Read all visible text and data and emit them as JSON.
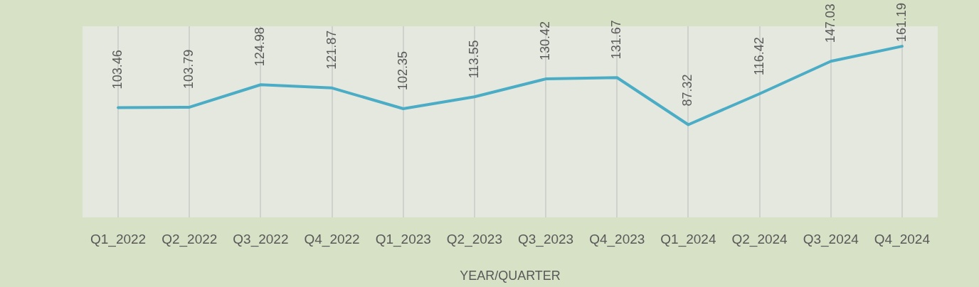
{
  "chart_data": {
    "type": "line",
    "xlabel": "YEAR/QUARTER",
    "categories": [
      "Q1_2022",
      "Q2_2022",
      "Q3_2022",
      "Q4_2022",
      "Q1_2023",
      "Q2_2023",
      "Q3_2023",
      "Q4_2023",
      "Q1_2024",
      "Q2_2024",
      "Q3_2024",
      "Q4_2024"
    ],
    "values": [
      103.46,
      103.79,
      124.98,
      121.87,
      102.35,
      113.55,
      130.42,
      131.67,
      87.32,
      116.42,
      147.03,
      161.19
    ],
    "color": "#4bacc6",
    "ylim": [
      0,
      180
    ],
    "data_labels": true,
    "grid": "x",
    "legend": false,
    "marker": "none",
    "line_style": "solid"
  }
}
